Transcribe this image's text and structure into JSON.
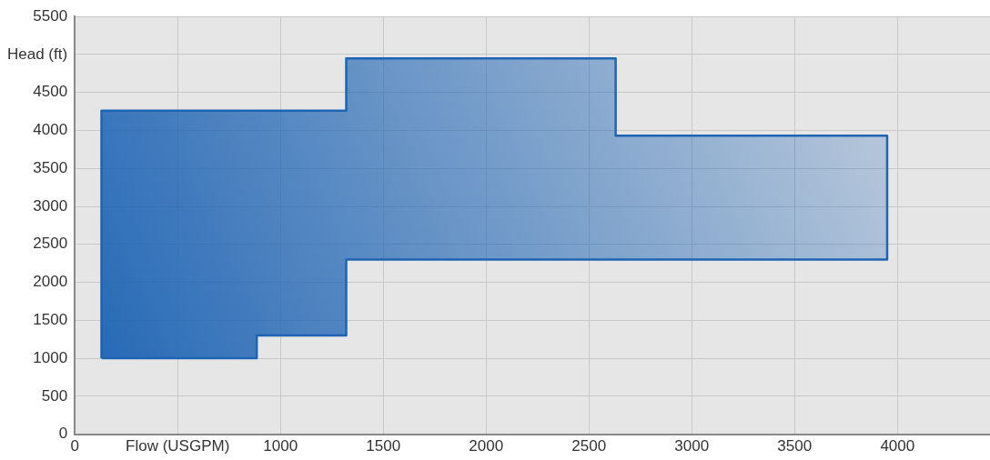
{
  "chart_data": {
    "type": "area",
    "series": [
      {
        "color": "#1e64b4",
        "x": [
          130,
          130,
          1320,
          1320,
          2630,
          2630,
          3950,
          3950,
          1320,
          1320,
          885,
          885,
          130
        ],
        "values": [
          1000,
          4260,
          4260,
          4950,
          4950,
          3930,
          3930,
          2300,
          2300,
          1300,
          1300,
          1000,
          1000
        ]
      }
    ],
    "xlim": [
      0,
      4450
    ],
    "xticks": [
      0,
      {
        "value": 500,
        "label": "Flow (USGPM)"
      },
      1000,
      1500,
      2000,
      2500,
      3000,
      3500,
      4000
    ],
    "ylim": [
      0,
      5500
    ],
    "yticks": [
      0,
      500,
      1000,
      1500,
      2000,
      2500,
      3000,
      3500,
      4000,
      4500,
      {
        "value": 5000,
        "label": "Head (ft)"
      },
      5500
    ],
    "grid": true,
    "legend": false,
    "marker": "none",
    "line_style": "solid"
  }
}
